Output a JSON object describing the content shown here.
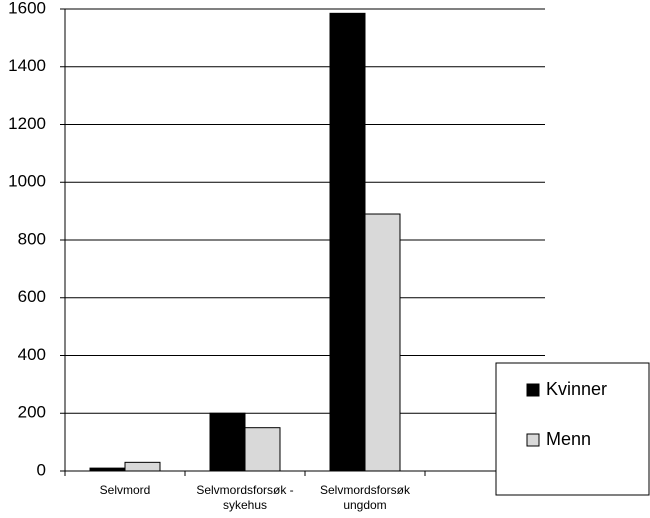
{
  "chart_data": {
    "type": "bar",
    "categories": [
      "Selvmord",
      "Selvmordsforsøk -\nsykehus",
      "Selvmordsforsøk\nungdom",
      null
    ],
    "series": [
      {
        "name": "Kvinner",
        "color": "#000000",
        "values": [
          10,
          200,
          1585,
          null
        ]
      },
      {
        "name": "Menn",
        "color": "#d9d9d9",
        "values": [
          30,
          150,
          890,
          null
        ]
      }
    ],
    "ylim": [
      0,
      1600
    ],
    "yticks": [
      0,
      200,
      400,
      600,
      800,
      1000,
      1200,
      1400,
      1600
    ],
    "grid": true,
    "legend": "right"
  }
}
